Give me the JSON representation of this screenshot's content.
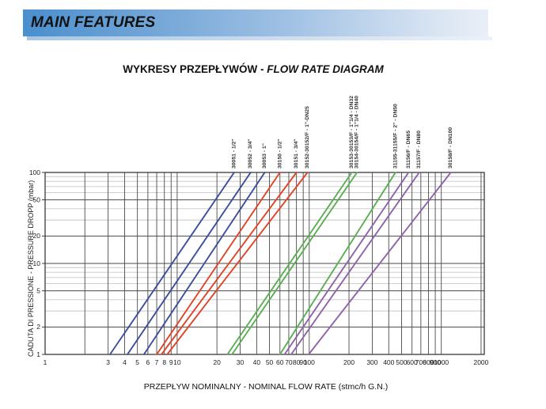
{
  "header": {
    "title": "MAIN FEATURES"
  },
  "chart": {
    "title_plain": "WYKRESY PRZEPŁYWÓW - ",
    "title_italic": "FLOW RATE DIAGRAM",
    "y_axis_title": "CADUTA DI PRESSIONE - PRESSURE DROPP (mbar)",
    "x_axis_title": "PRZEPŁYW NOMINALNY - NOMINAL FLOW RATE (stmc/h G.N.)"
  },
  "colors": {
    "blue": "#3a4e9c",
    "red": "#de4527",
    "green": "#5bae54",
    "purple": "#8f63a9",
    "grid_dark": "#4a4a4a",
    "grid_light": "#c8c8c8",
    "frame": "#3a3a3a",
    "tick_text": "#222222",
    "label_text": "#333333"
  },
  "chart_data": {
    "type": "line",
    "x_scale": "log",
    "y_scale": "log",
    "xlim": [
      1,
      2000
    ],
    "ylim": [
      1,
      100
    ],
    "grid": true,
    "x_tick_labels": [
      1,
      3,
      4,
      5,
      6,
      7,
      8,
      9,
      10,
      20,
      30,
      40,
      50,
      60,
      70,
      80,
      90,
      100,
      200,
      300,
      400,
      500,
      600,
      700,
      800,
      900,
      1000,
      2000
    ],
    "y_tick_labels": [
      1,
      2,
      5,
      10,
      20,
      50,
      100
    ],
    "y_dark_gridlines": [
      2,
      5,
      10,
      20,
      50,
      100
    ],
    "y_light_gridlines": [
      3,
      4,
      6,
      7,
      8,
      9,
      30,
      40,
      60,
      70,
      80,
      90
    ],
    "xlabel": "PRZEPŁYW NOMINALNY - NOMINAL FLOW RATE (stmc/h G.N.)",
    "ylabel": "CADUTA DI PRESSIONE - PRESSURE DROPP (mbar)",
    "title": "WYKRESY PRZEPŁYWÓW - FLOW RATE DIAGRAM",
    "series": [
      {
        "id": "30051",
        "name": "30051 - 1/2\"",
        "color_key": "blue",
        "points": [
          [
            3.1,
            1
          ],
          [
            27,
            100
          ]
        ]
      },
      {
        "id": "30052",
        "name": "30052 - 3/4\"",
        "color_key": "blue",
        "points": [
          [
            4.2,
            1
          ],
          [
            36,
            100
          ]
        ]
      },
      {
        "id": "30053",
        "name": "30053 - 1\"",
        "color_key": "blue",
        "points": [
          [
            5.6,
            1
          ],
          [
            46,
            100
          ]
        ]
      },
      {
        "id": "30150",
        "name": "30150 - 1/2\"",
        "color_key": "red",
        "points": [
          [
            7.0,
            1
          ],
          [
            60,
            100
          ]
        ]
      },
      {
        "id": "30151",
        "name": "30151 - 3/4\"",
        "color_key": "red",
        "points": [
          [
            7.6,
            1
          ],
          [
            80,
            100
          ]
        ]
      },
      {
        "id": "30152",
        "name": "30152-30152/F - 1\"-DN25",
        "color_key": "red",
        "points": [
          [
            8.4,
            1
          ],
          [
            97,
            100
          ]
        ]
      },
      {
        "id": "30153",
        "name": "30153-30153/F - 1\"1/4 - DN32",
        "color_key": "green",
        "points": [
          [
            24,
            1
          ],
          [
            210,
            100
          ]
        ]
      },
      {
        "id": "30154",
        "name": "30154-30154/F - 1\"1/4 - DN40",
        "color_key": "green",
        "points": [
          [
            26,
            1
          ],
          [
            230,
            100
          ]
        ]
      },
      {
        "id": "31155",
        "name": "31155-31155/F - 2\" - DN50",
        "color_key": "green",
        "points": [
          [
            60,
            1
          ],
          [
            450,
            100
          ]
        ]
      },
      {
        "id": "31156",
        "name": "31156/F - DN65",
        "color_key": "purple",
        "points": [
          [
            65,
            1
          ],
          [
            565,
            100
          ]
        ]
      },
      {
        "id": "31157",
        "name": "31157/F - DN80",
        "color_key": "purple",
        "points": [
          [
            73,
            1
          ],
          [
            680,
            100
          ]
        ]
      },
      {
        "id": "30158",
        "name": "30158/F - DN100",
        "color_key": "purple",
        "points": [
          [
            99,
            1
          ],
          [
            1180,
            100
          ]
        ]
      }
    ]
  }
}
